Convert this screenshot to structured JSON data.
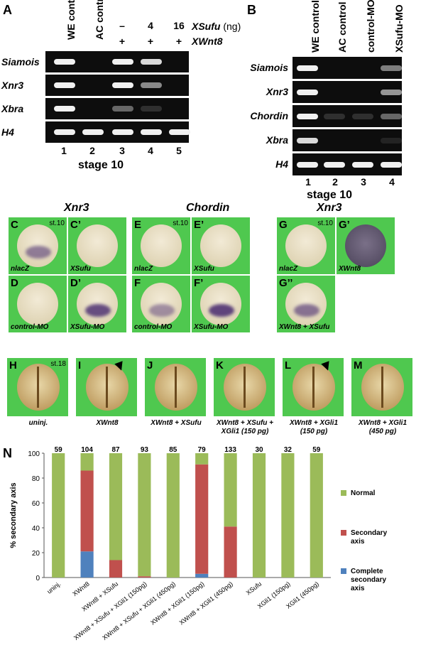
{
  "panelA": {
    "label": "A",
    "columns": [
      "WE control",
      "AC control",
      "–",
      "4",
      "16"
    ],
    "treatment1": "XSufu",
    "treatment1_unit": "(ng)",
    "plus_row": [
      "",
      "",
      "+",
      "+",
      "+"
    ],
    "treatment2": "XWnt8",
    "rows": [
      "Siamois",
      "Xnr3",
      "Xbra",
      "H4"
    ],
    "lanes": [
      "1",
      "2",
      "3",
      "4",
      "5"
    ],
    "stage": "stage 10"
  },
  "panelB": {
    "label": "B",
    "columns": [
      "WE control",
      "AC control",
      "control-MO",
      "XSufu-MO"
    ],
    "rows": [
      "Siamois",
      "Xnr3",
      "Chordin",
      "Xbra",
      "H4"
    ],
    "lanes": [
      "1",
      "2",
      "3",
      "4"
    ],
    "stage": "stage 10"
  },
  "insitu": {
    "headers": [
      "Xnr3",
      "Chordin",
      "Xnr3"
    ],
    "panels": [
      {
        "id": "C",
        "label": "C",
        "stage": "st.10",
        "caption": "nlacZ"
      },
      {
        "id": "C2",
        "label": "C’",
        "stage": "",
        "caption": "XSufu"
      },
      {
        "id": "E",
        "label": "E",
        "stage": "st.10",
        "caption": "nlacZ"
      },
      {
        "id": "E2",
        "label": "E’",
        "stage": "",
        "caption": "XSufu"
      },
      {
        "id": "G",
        "label": "G",
        "stage": "st.10",
        "caption": "nlacZ"
      },
      {
        "id": "G2",
        "label": "G’",
        "stage": "",
        "caption": "XWnt8"
      },
      {
        "id": "D",
        "label": "D",
        "stage": "",
        "caption": "control-MO"
      },
      {
        "id": "D2",
        "label": "D’",
        "stage": "",
        "caption": "XSufu-MO"
      },
      {
        "id": "F",
        "label": "F",
        "stage": "",
        "caption": "control-MO"
      },
      {
        "id": "F2",
        "label": "F’",
        "stage": "",
        "caption": "XSufu-MO"
      },
      {
        "id": "G3",
        "label": "G’’",
        "stage": "",
        "caption": "XWnt8 + XSufu"
      }
    ]
  },
  "axis": {
    "panels": [
      {
        "label": "H",
        "stage": "st.18",
        "caption": "uninj."
      },
      {
        "label": "I",
        "stage": "",
        "caption": "XWnt8"
      },
      {
        "label": "J",
        "stage": "",
        "caption": "XWnt8 + XSufu"
      },
      {
        "label": "K",
        "stage": "",
        "caption": "XWnt8 + XSufu + XGli1 (150 pg)"
      },
      {
        "label": "L",
        "stage": "",
        "caption": "XWnt8 + XGli1 (150 pg)"
      },
      {
        "label": "M",
        "stage": "",
        "caption": "XWnt8 + XGli1 (450 pg)"
      }
    ]
  },
  "panelN": {
    "label": "N"
  },
  "chart_data": {
    "type": "bar",
    "stacked": true,
    "ylabel": "% secondary axis",
    "ylim": [
      0,
      100
    ],
    "yticks": [
      0,
      20,
      40,
      60,
      80,
      100
    ],
    "categories": [
      "uninj.",
      "XWnt8",
      "XWnt8 + XSufu",
      "XWnt8 + XSufu + XGli1 (150pg)",
      "XWnt8 + XSufu + XGli1 (450pg)",
      "XWnt8 + XGli1 (150pg)",
      "XWnt8 + XGli1 (450pg)",
      "XSufu",
      "XGli1 (150pg)",
      "XGli1 (450pg)"
    ],
    "n_labels": [
      "59",
      "104",
      "87",
      "93",
      "85",
      "79",
      "133",
      "30",
      "32",
      "59"
    ],
    "series": [
      {
        "name": "Complete secondary axis",
        "color": "#4f81bd",
        "values": [
          0,
          21,
          0,
          0,
          0,
          3,
          0,
          0,
          0,
          0
        ]
      },
      {
        "name": "Secondary axis",
        "color": "#c0504d",
        "values": [
          0,
          65,
          14,
          1,
          0,
          88,
          41,
          0,
          0,
          0
        ]
      },
      {
        "name": "Normal",
        "color": "#9bbb59",
        "values": [
          100,
          14,
          86,
          99,
          100,
          9,
          59,
          100,
          100,
          100
        ]
      }
    ],
    "legend_position": "right",
    "legend": [
      "Normal",
      "Secondary axis",
      "Complete secondary axis"
    ]
  }
}
